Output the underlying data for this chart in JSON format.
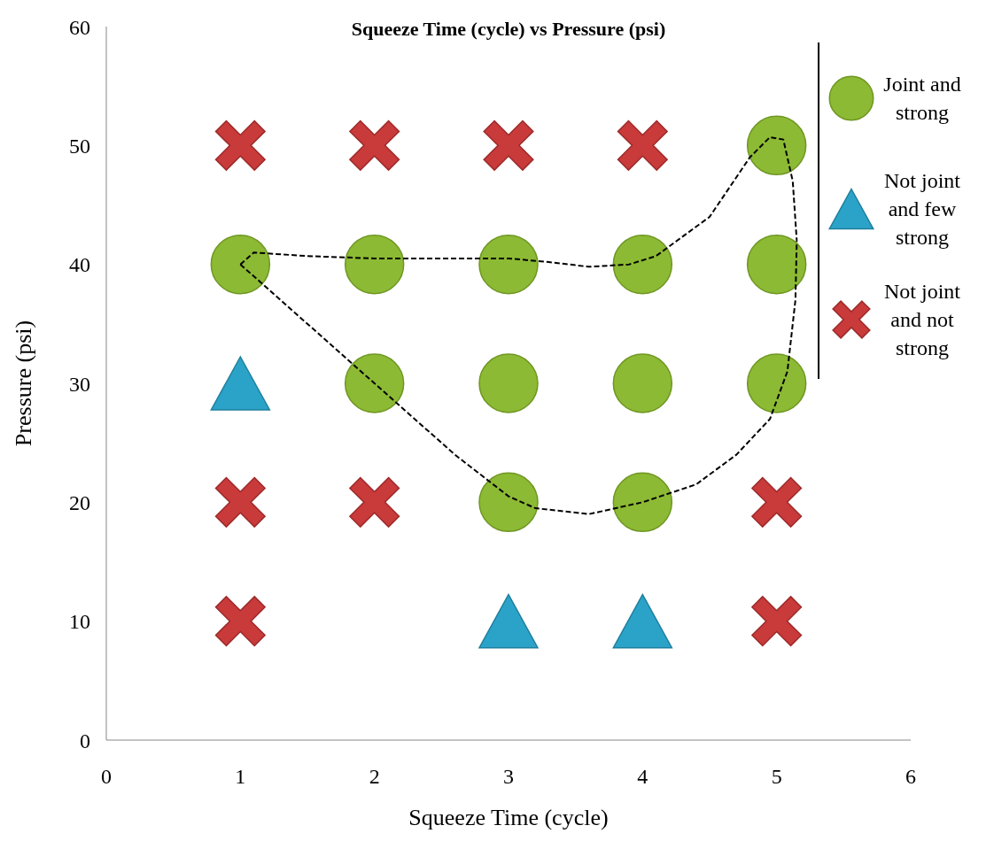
{
  "chart_data": {
    "type": "scatter",
    "title": "Squeeze Time (cycle) vs Pressure (psi)",
    "xlabel": "Squeeze Time (cycle)",
    "ylabel": "Pressure (psi)",
    "xlim": [
      0,
      6
    ],
    "xticks": [
      0,
      1,
      2,
      3,
      4,
      5,
      6
    ],
    "ylim": [
      0,
      60
    ],
    "yticks": [
      0,
      10,
      20,
      30,
      40,
      50,
      60
    ],
    "grid": false,
    "legend": "top right",
    "series": [
      {
        "name": "Joint and strong",
        "color": "#8cba34",
        "marker": "circle",
        "x": [
          1,
          2,
          3,
          4,
          5,
          5,
          2,
          3,
          4,
          5,
          3,
          4
        ],
        "values": [
          40,
          40,
          40,
          40,
          50,
          40,
          30,
          30,
          30,
          30,
          20,
          20
        ]
      },
      {
        "name": "Not joint and few strong",
        "color": "#2ba3c8",
        "marker": "triangle",
        "x": [
          1,
          3,
          4
        ],
        "values": [
          30,
          10,
          10
        ]
      },
      {
        "name": "Not joint and not strong",
        "color": "#c93a3a",
        "marker": "cross",
        "x": [
          1,
          2,
          3,
          4,
          1,
          2,
          5,
          1,
          5
        ],
        "values": [
          50,
          50,
          50,
          50,
          20,
          20,
          20,
          10,
          10
        ]
      },
      {
        "type": "line",
        "color": "#000000",
        "line_style": "dashed",
        "marker": "none",
        "x": [
          1,
          1.1,
          1.5,
          2,
          2.5,
          3,
          3.3,
          3.6,
          3.9,
          4.1,
          4.5,
          4.8,
          4.95,
          5.05,
          5.12,
          5.15
        ],
        "values": [
          40,
          41,
          40.7,
          40.5,
          40.5,
          40.5,
          40.2,
          39.8,
          40,
          40.7,
          44,
          49,
          50.7,
          50.5,
          47,
          42
        ]
      },
      {
        "type": "line",
        "color": "#000000",
        "line_style": "dashed",
        "marker": "none",
        "x": [
          1,
          1.3,
          1.6,
          2,
          2.2,
          2.6,
          3,
          3.2,
          3.6,
          4,
          4.4,
          4.7,
          4.95,
          5.08,
          5.14,
          5.15
        ],
        "values": [
          40,
          37,
          34,
          30,
          28,
          24,
          20.5,
          19.5,
          19,
          20,
          21.5,
          24,
          27,
          31,
          37,
          42
        ]
      }
    ]
  }
}
